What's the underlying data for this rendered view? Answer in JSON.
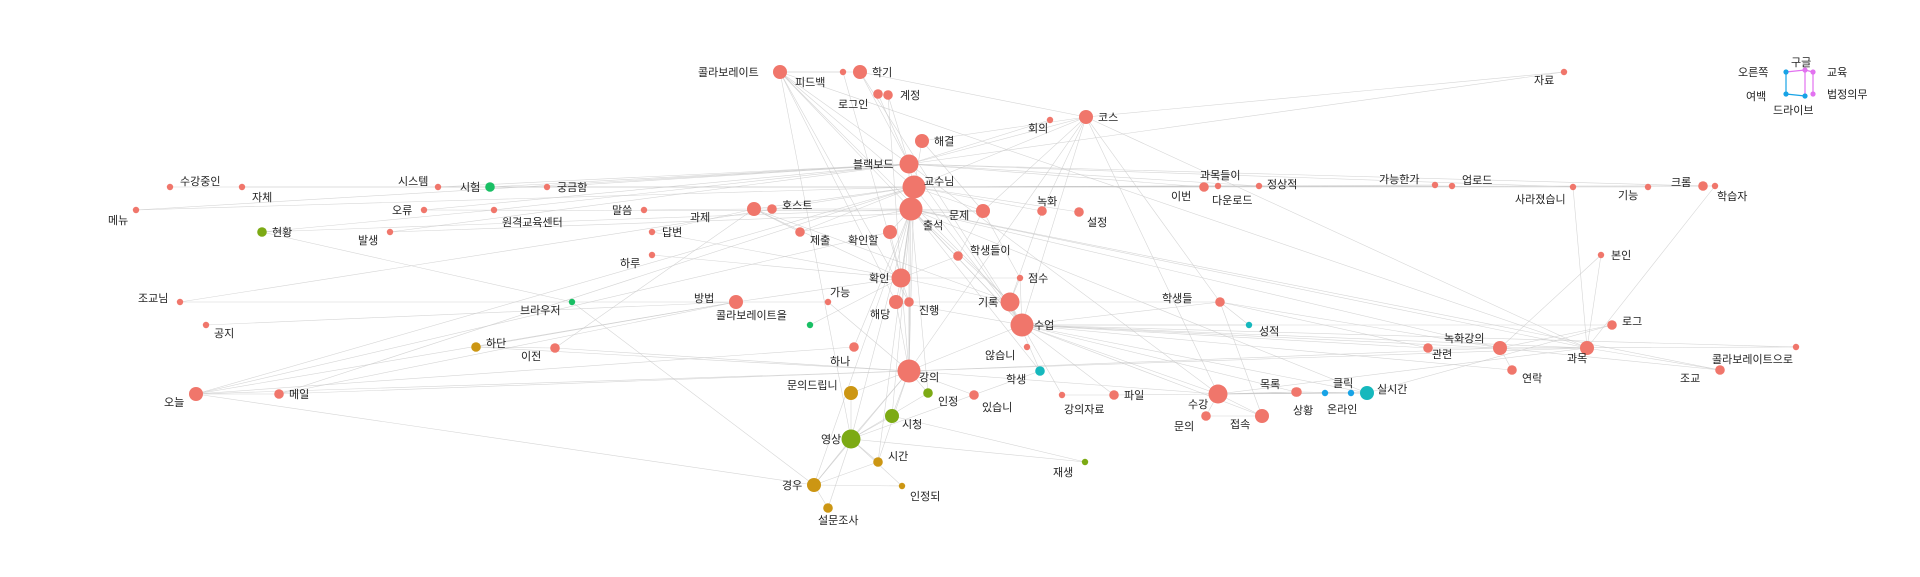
{
  "colors": {
    "red": "#f0766b",
    "olive": "#7caa14",
    "gold": "#cc9613",
    "green": "#19bf64",
    "teal": "#16b8bd",
    "blue": "#17a3e6",
    "magenta": "#e272f0",
    "edge": "#c8c8c8"
  },
  "nodes": [
    {
      "id": "콜라보레이트",
      "label": "콜라보레이트",
      "group": "red",
      "size": "m"
    },
    {
      "id": "피드백",
      "label": "피드백",
      "group": "red",
      "size": "xs"
    },
    {
      "id": "학기",
      "label": "학기",
      "group": "red",
      "size": "m"
    },
    {
      "id": "계정",
      "label": "계정",
      "group": "red",
      "size": "s"
    },
    {
      "id": "로그인",
      "label": "로그인",
      "group": "red",
      "size": "s"
    },
    {
      "id": "회의",
      "label": "회의",
      "group": "red",
      "size": "xs"
    },
    {
      "id": "코스",
      "label": "코스",
      "group": "red",
      "size": "m"
    },
    {
      "id": "해결",
      "label": "해결",
      "group": "red",
      "size": "m"
    },
    {
      "id": "블랙보드",
      "label": "블랙보드",
      "group": "red",
      "size": "l"
    },
    {
      "id": "교수님",
      "label": "교수님",
      "group": "red",
      "size": "xl"
    },
    {
      "id": "출석",
      "label": "출석",
      "group": "red",
      "size": "xl"
    },
    {
      "id": "문제",
      "label": "문제",
      "group": "red",
      "size": "m"
    },
    {
      "id": "녹화",
      "label": "녹화",
      "group": "red",
      "size": "s"
    },
    {
      "id": "설정",
      "label": "설정",
      "group": "red",
      "size": "s"
    },
    {
      "id": "확인할",
      "label": "확인할",
      "group": "red",
      "size": "m"
    },
    {
      "id": "학생들이",
      "label": "학생들이",
      "group": "red",
      "size": "s"
    },
    {
      "id": "점수",
      "label": "점수",
      "group": "red",
      "size": "xs"
    },
    {
      "id": "확인",
      "label": "확인",
      "group": "red",
      "size": "l"
    },
    {
      "id": "기록",
      "label": "기록",
      "group": "red",
      "size": "l"
    },
    {
      "id": "해당",
      "label": "해당",
      "group": "red",
      "size": "m"
    },
    {
      "id": "진행",
      "label": "진행",
      "group": "red",
      "size": "s"
    },
    {
      "id": "수업",
      "label": "수업",
      "group": "red",
      "size": "xl"
    },
    {
      "id": "않습니",
      "label": "않습니",
      "group": "red",
      "size": "xs"
    },
    {
      "id": "강의",
      "label": "강의",
      "group": "red",
      "size": "xl"
    },
    {
      "id": "하나",
      "label": "하나",
      "group": "red",
      "size": "s"
    },
    {
      "id": "있습니",
      "label": "있습니",
      "group": "red",
      "size": "s"
    },
    {
      "id": "강의자료",
      "label": "강의자료",
      "group": "red",
      "size": "xs"
    },
    {
      "id": "파일",
      "label": "파일",
      "group": "red",
      "size": "s"
    },
    {
      "id": "수강",
      "label": "수강",
      "group": "red",
      "size": "l"
    },
    {
      "id": "문의",
      "label": "문의",
      "group": "red",
      "size": "s"
    },
    {
      "id": "접속",
      "label": "접속",
      "group": "red",
      "size": "m"
    },
    {
      "id": "목록",
      "label": "목록",
      "group": "red",
      "size": "s"
    },
    {
      "id": "상황",
      "label": "상황",
      "group": "red",
      "size": "s"
    },
    {
      "id": "과제",
      "label": "과제",
      "group": "red",
      "size": "m"
    },
    {
      "id": "호스트",
      "label": "호스트",
      "group": "red",
      "size": "s"
    },
    {
      "id": "제출",
      "label": "제출",
      "group": "red",
      "size": "s"
    },
    {
      "id": "말씀",
      "label": "말씀",
      "group": "red",
      "size": "xs"
    },
    {
      "id": "답변",
      "label": "답변",
      "group": "red",
      "size": "xs"
    },
    {
      "id": "하루",
      "label": "하루",
      "group": "red",
      "size": "xs"
    },
    {
      "id": "궁금함",
      "label": "궁금함",
      "group": "red",
      "size": "xs"
    },
    {
      "id": "시스템",
      "label": "시스템",
      "group": "red",
      "size": "xs"
    },
    {
      "id": "원격교육센터",
      "label": "원격교육센터",
      "group": "red",
      "size": "xs"
    },
    {
      "id": "오류",
      "label": "오류",
      "group": "red",
      "size": "xs"
    },
    {
      "id": "발생",
      "label": "발생",
      "group": "red",
      "size": "xs"
    },
    {
      "id": "수강중인",
      "label": "수강중인",
      "group": "red",
      "size": "xs"
    },
    {
      "id": "자체",
      "label": "자체",
      "group": "red",
      "size": "xs"
    },
    {
      "id": "메뉴",
      "label": "메뉴",
      "group": "red",
      "size": "xs"
    },
    {
      "id": "조교님",
      "label": "조교님",
      "group": "red",
      "size": "xs"
    },
    {
      "id": "공지",
      "label": "공지",
      "group": "red",
      "size": "xs"
    },
    {
      "id": "방법",
      "label": "방법",
      "group": "red",
      "size": "m"
    },
    {
      "id": "가능",
      "label": "가능",
      "group": "red",
      "size": "xs"
    },
    {
      "id": "이전",
      "label": "이전",
      "group": "red",
      "size": "s"
    },
    {
      "id": "오늘",
      "label": "오늘",
      "group": "red",
      "size": "m"
    },
    {
      "id": "메일",
      "label": "메일",
      "group": "red",
      "size": "s"
    },
    {
      "id": "과목들이",
      "label": "과목들이",
      "group": "red",
      "size": "s"
    },
    {
      "id": "정상적",
      "label": "정상적",
      "group": "red",
      "size": "xs"
    },
    {
      "id": "이번",
      "label": "이번",
      "group": "red",
      "size": "xs"
    },
    {
      "id": "다운로드",
      "label": "다운로드",
      "group": "red",
      "size": "xs"
    },
    {
      "id": "가능한가",
      "label": "가능한가",
      "group": "red",
      "size": "xs"
    },
    {
      "id": "업로드",
      "label": "업로드",
      "group": "red",
      "size": "xs"
    },
    {
      "id": "사라졌습니",
      "label": "사라졌습니",
      "group": "red",
      "size": "xs"
    },
    {
      "id": "자료",
      "label": "자료",
      "group": "red",
      "size": "xs"
    },
    {
      "id": "기능",
      "label": "기능",
      "group": "red",
      "size": "xs"
    },
    {
      "id": "크롬",
      "label": "크롬",
      "group": "red",
      "size": "s"
    },
    {
      "id": "학습자",
      "label": "학습자",
      "group": "red",
      "size": "xs"
    },
    {
      "id": "본인",
      "label": "본인",
      "group": "red",
      "size": "xs"
    },
    {
      "id": "학생들",
      "label": "학생들",
      "group": "red",
      "size": "s"
    },
    {
      "id": "로그",
      "label": "로그",
      "group": "red",
      "size": "s"
    },
    {
      "id": "관련",
      "label": "관련",
      "group": "red",
      "size": "s"
    },
    {
      "id": "녹화강의",
      "label": "녹화강의",
      "group": "red",
      "size": "m"
    },
    {
      "id": "과목",
      "label": "과목",
      "group": "red",
      "size": "m"
    },
    {
      "id": "연락",
      "label": "연락",
      "group": "red",
      "size": "s"
    },
    {
      "id": "콜라보레이트으로",
      "label": "콜라보레이트으로",
      "group": "red",
      "size": "xs"
    },
    {
      "id": "조교",
      "label": "조교",
      "group": "red",
      "size": "s"
    },
    {
      "id": "시험",
      "label": "시험",
      "group": "green",
      "size": "s"
    },
    {
      "id": "콜라보레이트을",
      "label": "콜라보레이트을",
      "group": "green",
      "size": "xs"
    },
    {
      "id": "현황",
      "label": "현황",
      "group": "olive",
      "size": "s"
    },
    {
      "id": "브라우저",
      "label": "브라우저",
      "group": "green",
      "size": "xs"
    },
    {
      "id": "하단",
      "label": "하단",
      "group": "gold",
      "size": "s"
    },
    {
      "id": "문의드립니",
      "label": "문의드립니",
      "group": "gold",
      "size": "m"
    },
    {
      "id": "인정",
      "label": "인정",
      "group": "olive",
      "size": "s"
    },
    {
      "id": "시청",
      "label": "시청",
      "group": "olive",
      "size": "m"
    },
    {
      "id": "영상",
      "label": "영상",
      "group": "olive",
      "size": "l"
    },
    {
      "id": "시간",
      "label": "시간",
      "group": "gold",
      "size": "s"
    },
    {
      "id": "경우",
      "label": "경우",
      "group": "gold",
      "size": "m"
    },
    {
      "id": "인정되",
      "label": "인정되",
      "group": "gold",
      "size": "xs"
    },
    {
      "id": "설문조사",
      "label": "설문조사",
      "group": "gold",
      "size": "s"
    },
    {
      "id": "재생",
      "label": "재생",
      "group": "olive",
      "size": "xs"
    },
    {
      "id": "학생",
      "label": "학생",
      "group": "teal",
      "size": "s"
    },
    {
      "id": "성적",
      "label": "성적",
      "group": "teal",
      "size": "xs"
    },
    {
      "id": "클릭",
      "label": "클릭",
      "group": "blue",
      "size": "xs"
    },
    {
      "id": "실시간",
      "label": "실시간",
      "group": "teal",
      "size": "m"
    },
    {
      "id": "온라인",
      "label": "온라인",
      "group": "blue",
      "size": "xs"
    },
    {
      "id": "오른쪽",
      "label": "오른쪽",
      "group": "blue",
      "size": "xxs"
    },
    {
      "id": "구글",
      "label": "구글",
      "group": "magenta",
      "size": "xxs"
    },
    {
      "id": "교육",
      "label": "교육",
      "group": "magenta",
      "size": "xxs"
    },
    {
      "id": "여백",
      "label": "여백",
      "group": "blue",
      "size": "xxs"
    },
    {
      "id": "법정의무",
      "label": "법정의무",
      "group": "magenta",
      "size": "xxs"
    },
    {
      "id": "드라이브",
      "label": "드라이브",
      "group": "blue",
      "size": "xxs"
    }
  ],
  "edges": [
    [
      "교수님",
      "블랙보드"
    ],
    [
      "교수님",
      "출석"
    ],
    [
      "교수님",
      "수업"
    ],
    [
      "교수님",
      "강의"
    ],
    [
      "교수님",
      "확인"
    ],
    [
      "교수님",
      "코스"
    ],
    [
      "교수님",
      "해결"
    ],
    [
      "교수님",
      "콜라보레이트"
    ],
    [
      "교수님",
      "과목들이"
    ],
    [
      "교수님",
      "업로드"
    ],
    [
      "교수님",
      "기능"
    ],
    [
      "교수님",
      "크롬"
    ],
    [
      "교수님",
      "학습자"
    ],
    [
      "교수님",
      "오늘"
    ],
    [
      "교수님",
      "메일"
    ],
    [
      "교수님",
      "조교님"
    ],
    [
      "교수님",
      "수강중인"
    ],
    [
      "교수님",
      "자체"
    ],
    [
      "교수님",
      "메뉴"
    ],
    [
      "교수님",
      "과제"
    ],
    [
      "교수님",
      "문제"
    ],
    [
      "교수님",
      "녹화"
    ],
    [
      "교수님",
      "설정"
    ],
    [
      "교수님",
      "가능한가"
    ],
    [
      "교수님",
      "다운로드"
    ],
    [
      "교수님",
      "이번"
    ],
    [
      "블랙보드",
      "콜라보레이트"
    ],
    [
      "블랙보드",
      "학기"
    ],
    [
      "블랙보드",
      "로그인"
    ],
    [
      "블랙보드",
      "계정"
    ],
    [
      "블랙보드",
      "회의"
    ],
    [
      "블랙보드",
      "코스"
    ],
    [
      "블랙보드",
      "수업"
    ],
    [
      "블랙보드",
      "강의"
    ],
    [
      "블랙보드",
      "수강"
    ],
    [
      "블랙보드",
      "크롬"
    ],
    [
      "블랙보드",
      "사라졌습니"
    ],
    [
      "블랙보드",
      "정상적"
    ],
    [
      "블랙보드",
      "과목들이"
    ],
    [
      "블랙보드",
      "메뉴"
    ],
    [
      "블랙보드",
      "시스템"
    ],
    [
      "블랙보드",
      "시험"
    ],
    [
      "블랙보드",
      "궁금함"
    ],
    [
      "블랙보드",
      "오류"
    ],
    [
      "블랙보드",
      "발생"
    ],
    [
      "블랙보드",
      "자료"
    ],
    [
      "블랙보드",
      "원격교육센터"
    ],
    [
      "출석",
      "수업"
    ],
    [
      "출석",
      "강의"
    ],
    [
      "출석",
      "확인"
    ],
    [
      "출석",
      "영상"
    ],
    [
      "출석",
      "시청"
    ],
    [
      "출석",
      "인정"
    ],
    [
      "출석",
      "기록"
    ],
    [
      "출석",
      "녹화강의"
    ],
    [
      "출석",
      "실시간"
    ],
    [
      "출석",
      "학생"
    ],
    [
      "출석",
      "과목"
    ],
    [
      "출석",
      "경우"
    ],
    [
      "출석",
      "시간"
    ],
    [
      "출석",
      "조교"
    ],
    [
      "출석",
      "하나"
    ],
    [
      "출석",
      "문제"
    ],
    [
      "출석",
      "확인할"
    ],
    [
      "출석",
      "제출"
    ],
    [
      "출석",
      "호스트"
    ],
    [
      "수업",
      "강의"
    ],
    [
      "수업",
      "기록"
    ],
    [
      "수업",
      "실시간"
    ],
    [
      "수업",
      "녹화강의"
    ],
    [
      "수업",
      "과목"
    ],
    [
      "수업",
      "학생들"
    ],
    [
      "수업",
      "성적"
    ],
    [
      "수업",
      "수강"
    ],
    [
      "수업",
      "연락"
    ],
    [
      "수업",
      "접속"
    ],
    [
      "수업",
      "콜라보레이트"
    ],
    [
      "수업",
      "학기"
    ],
    [
      "수업",
      "코스"
    ],
    [
      "수업",
      "관련"
    ],
    [
      "수업",
      "목록"
    ],
    [
      "수업",
      "해당"
    ],
    [
      "수업",
      "점수"
    ],
    [
      "수업",
      "콜라보레이트으로"
    ],
    [
      "수업",
      "로그"
    ],
    [
      "수업",
      "강의자료"
    ],
    [
      "수업",
      "파일"
    ],
    [
      "강의",
      "영상"
    ],
    [
      "강의",
      "시청"
    ],
    [
      "강의",
      "경우"
    ],
    [
      "강의",
      "시간"
    ],
    [
      "강의",
      "문의드립니"
    ],
    [
      "강의",
      "녹화강의"
    ],
    [
      "강의",
      "확인"
    ],
    [
      "강의",
      "인정"
    ],
    [
      "강의",
      "있습니"
    ],
    [
      "강의",
      "수강"
    ],
    [
      "강의",
      "오늘"
    ],
    [
      "강의",
      "메일"
    ],
    [
      "강의",
      "이전"
    ],
    [
      "강의",
      "과목"
    ],
    [
      "강의",
      "하단"
    ],
    [
      "강의",
      "해당"
    ],
    [
      "강의",
      "진행"
    ],
    [
      "강의",
      "가능"
    ],
    [
      "확인",
      "기록"
    ],
    [
      "확인",
      "해당"
    ],
    [
      "확인",
      "진행"
    ],
    [
      "확인",
      "확인할"
    ],
    [
      "확인",
      "방법"
    ],
    [
      "확인",
      "콜라보레이트을"
    ],
    [
      "확인",
      "하루"
    ],
    [
      "확인",
      "답변"
    ],
    [
      "확인",
      "학생들이"
    ],
    [
      "확인",
      "점수"
    ],
    [
      "확인",
      "피드백"
    ],
    [
      "확인",
      "계정"
    ],
    [
      "영상",
      "시청"
    ],
    [
      "영상",
      "경우"
    ],
    [
      "영상",
      "시간"
    ],
    [
      "영상",
      "인정되"
    ],
    [
      "영상",
      "설문조사"
    ],
    [
      "영상",
      "재생"
    ],
    [
      "영상",
      "문의드립니"
    ],
    [
      "영상",
      "인정"
    ],
    [
      "영상",
      "학생"
    ],
    [
      "녹화강의",
      "과목"
    ],
    [
      "녹화강의",
      "관련"
    ],
    [
      "녹화강의",
      "연락"
    ],
    [
      "녹화강의",
      "로그"
    ],
    [
      "녹화강의",
      "조교"
    ],
    [
      "녹화강의",
      "본인"
    ],
    [
      "녹화강의",
      "학생들"
    ],
    [
      "녹화강의",
      "콜라보레이트으로"
    ],
    [
      "수강",
      "접속"
    ],
    [
      "수강",
      "목록"
    ],
    [
      "수강",
      "클릭"
    ],
    [
      "수강",
      "실시간"
    ],
    [
      "수강",
      "온라인"
    ],
    [
      "수강",
      "상황"
    ],
    [
      "수강",
      "문의"
    ],
    [
      "수강",
      "과목"
    ],
    [
      "수강",
      "파일"
    ],
    [
      "콜라보레이트",
      "학기"
    ],
    [
      "콜라보레이트",
      "피드백"
    ],
    [
      "콜라보레이트",
      "해당"
    ],
    [
      "콜라보레이트",
      "진행"
    ],
    [
      "콜라보레이트",
      "기록"
    ],
    [
      "콜라보레이트",
      "과목"
    ],
    [
      "콜라보레이트",
      "영상"
    ],
    [
      "코스",
      "학기"
    ],
    [
      "코스",
      "해결"
    ],
    [
      "코스",
      "문제"
    ],
    [
      "코스",
      "녹화"
    ],
    [
      "코스",
      "과목"
    ],
    [
      "코스",
      "자료"
    ],
    [
      "코스",
      "수강"
    ],
    [
      "코스",
      "강의"
    ],
    [
      "코스",
      "학생들"
    ],
    [
      "과제",
      "제출"
    ],
    [
      "과제",
      "호스트"
    ],
    [
      "과제",
      "말씀"
    ],
    [
      "과제",
      "답변"
    ],
    [
      "과제",
      "확인"
    ],
    [
      "과제",
      "기록"
    ],
    [
      "과제",
      "이전"
    ],
    [
      "문제",
      "해결"
    ],
    [
      "문제",
      "발생"
    ],
    [
      "문제",
      "오류"
    ],
    [
      "문제",
      "학생들이"
    ],
    [
      "문제",
      "점수"
    ],
    [
      "기록",
      "학생"
    ],
    [
      "기록",
      "학생들"
    ],
    [
      "기록",
      "점수"
    ],
    [
      "기록",
      "해당"
    ],
    [
      "기록",
      "녹화"
    ],
    [
      "경우",
      "설문조사"
    ],
    [
      "경우",
      "시간"
    ],
    [
      "경우",
      "인정되"
    ],
    [
      "경우",
      "오늘"
    ],
    [
      "경우",
      "브라우저"
    ],
    [
      "실시간",
      "클릭"
    ],
    [
      "실시간",
      "온라인"
    ],
    [
      "실시간",
      "상황"
    ],
    [
      "실시간",
      "목록"
    ],
    [
      "실시간",
      "로그"
    ],
    [
      "방법",
      "조교님"
    ],
    [
      "방법",
      "공지"
    ],
    [
      "방법",
      "메일"
    ],
    [
      "방법",
      "오늘"
    ],
    [
      "방법",
      "가능"
    ],
    [
      "현황",
      "원격교육센터"
    ],
    [
      "현황",
      "브라우저"
    ],
    [
      "현황",
      "출석"
    ],
    [
      "하단",
      "이전"
    ],
    [
      "하단",
      "방법"
    ],
    [
      "시험",
      "궁금함"
    ],
    [
      "시험",
      "시스템"
    ],
    [
      "시험",
      "교수님"
    ],
    [
      "과목",
      "사라졌습니"
    ],
    [
      "과목",
      "본인"
    ],
    [
      "과목",
      "학습자"
    ],
    [
      "과목",
      "조교"
    ],
    [
      "오늘",
      "메일"
    ],
    [
      "오늘",
      "하나"
    ],
    [
      "오늘",
      "확인할"
    ],
    [
      "학생들",
      "성적"
    ],
    [
      "학생들",
      "관련"
    ],
    [
      "학생들",
      "접속"
    ],
    [
      "교수님",
      "제출"
    ],
    [
      "강의자료",
      "파일"
    ],
    [
      "문의",
      "접속"
    ],
    [
      "재생",
      "시청"
    ],
    [
      "오른쪽",
      "여백"
    ],
    [
      "여백",
      "드라이브"
    ],
    [
      "구글",
      "드라이브"
    ],
    [
      "구글",
      "교육"
    ],
    [
      "교육",
      "법정의무"
    ],
    [
      "구글",
      "오른쪽"
    ]
  ]
}
